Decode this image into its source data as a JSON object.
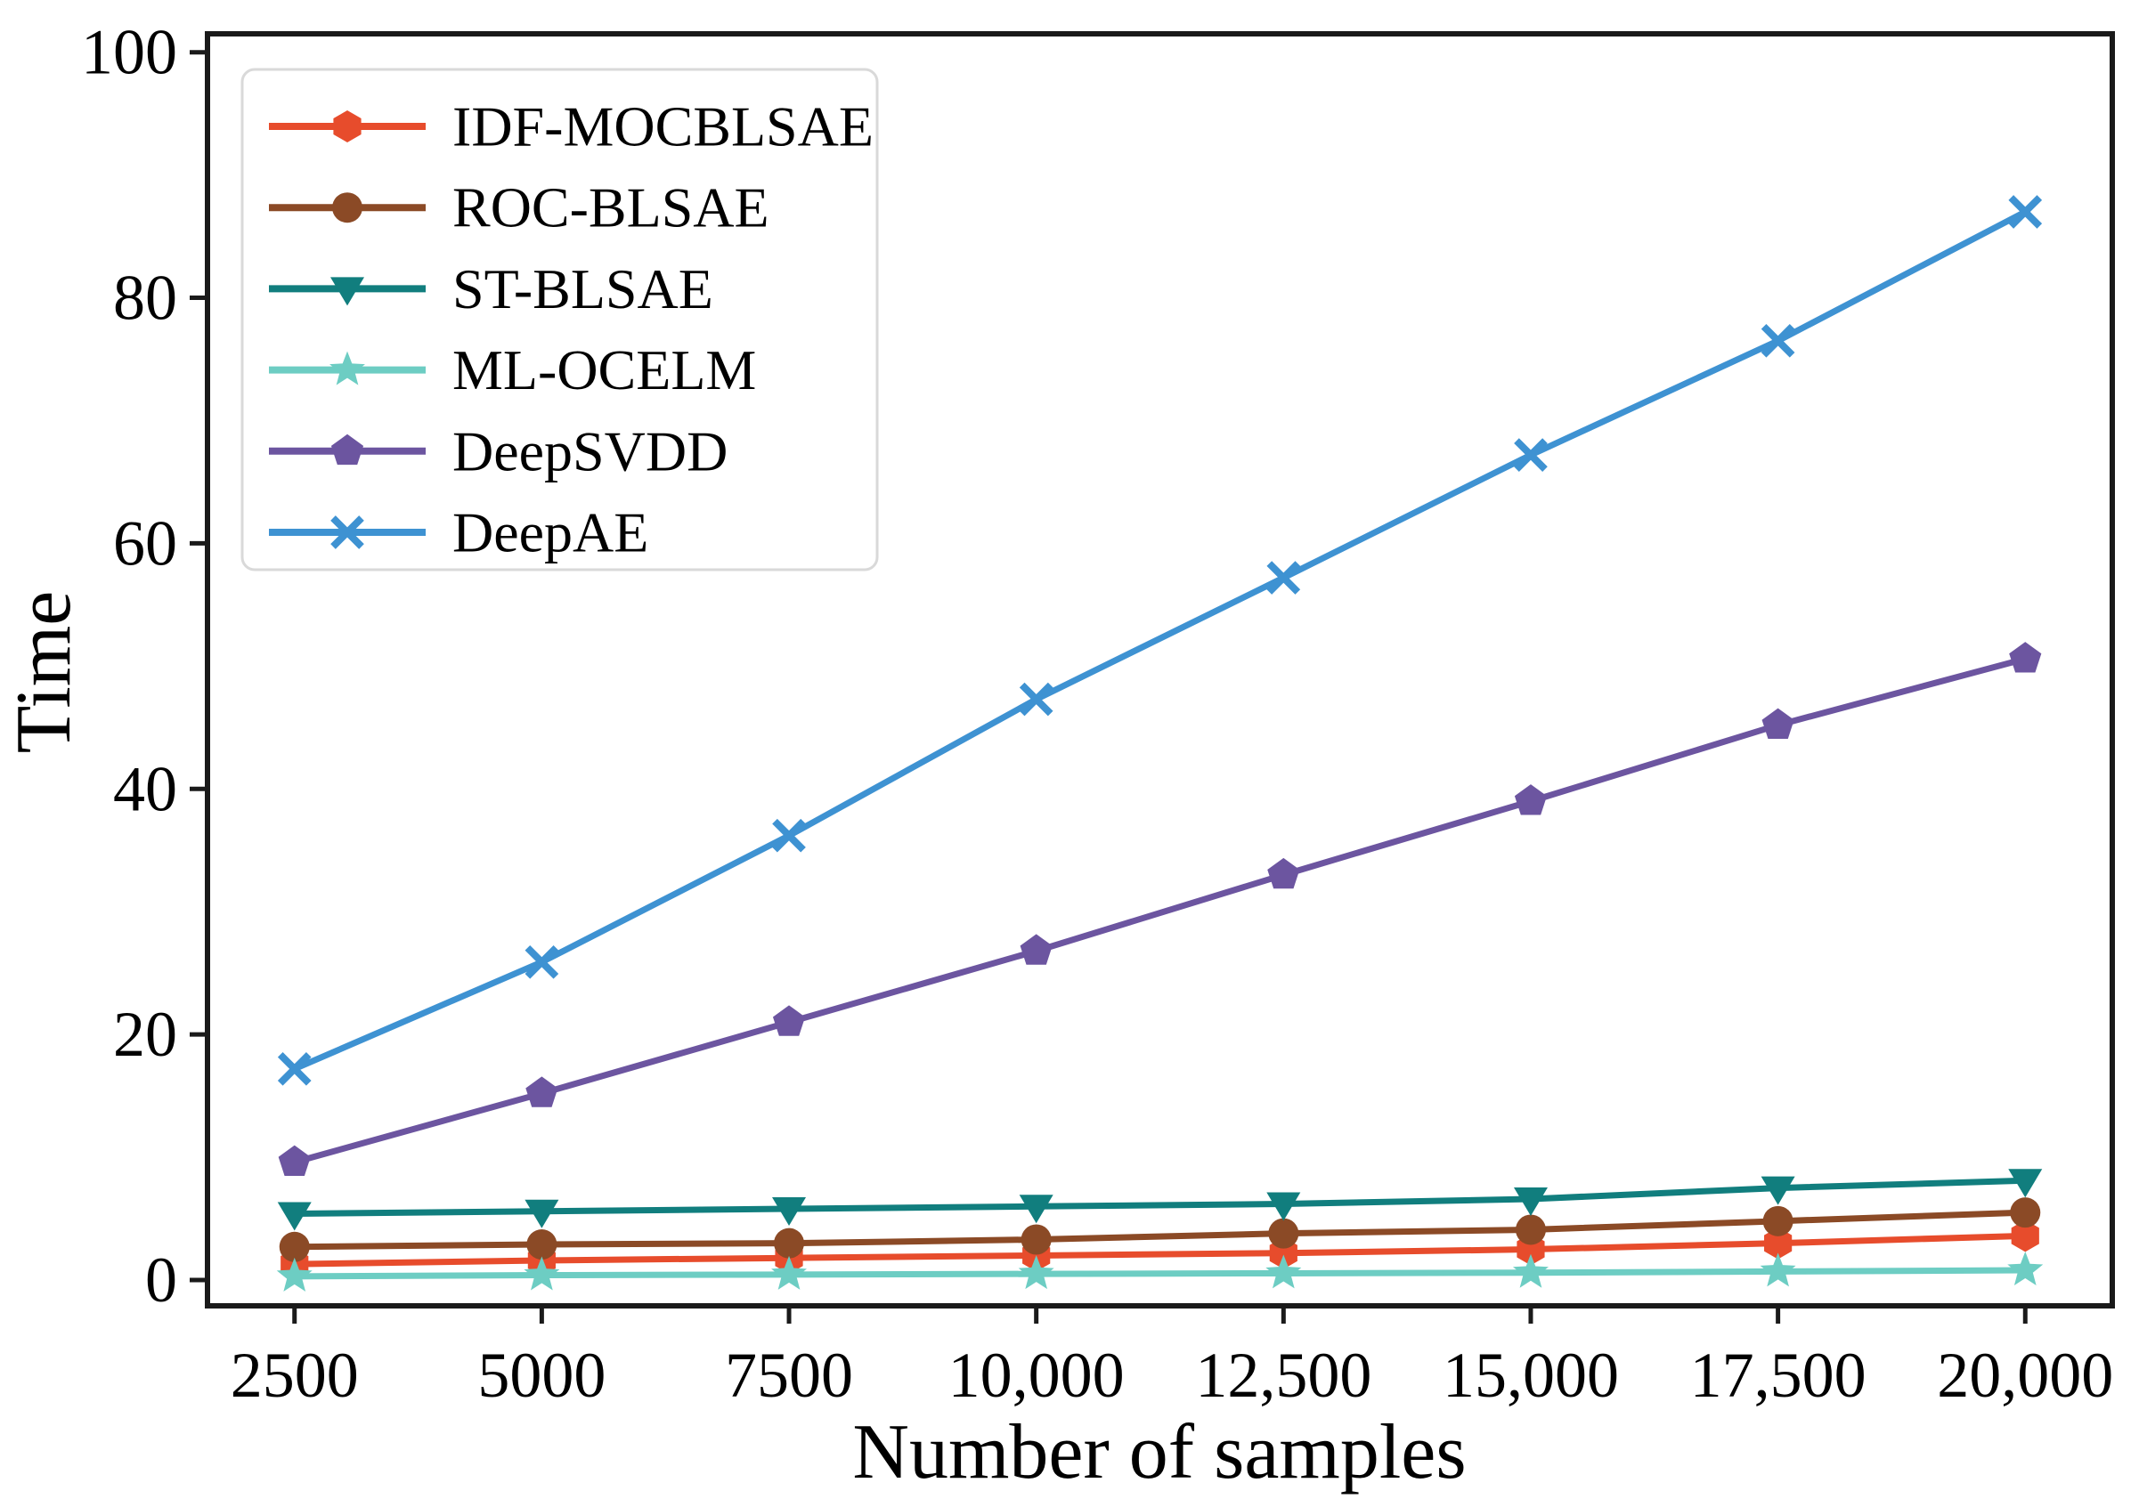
{
  "figure": {
    "background": "#ffffff",
    "text_color": "#000000",
    "spine_color": "#1a1a1a",
    "legend_border_color": "#d9d9d9",
    "legend_background": "#ffffff"
  },
  "chart_data": {
    "type": "line",
    "title": "",
    "xlabel": "Number of samples",
    "ylabel": "Time",
    "x": [
      2500,
      5000,
      7500,
      10000,
      12500,
      15000,
      17500,
      20000
    ],
    "x_tick_labels": [
      "2500",
      "5000",
      "7500",
      "10,000",
      "12,500",
      "15,000",
      "17,500",
      "20,000"
    ],
    "y_ticks": [
      0,
      20,
      40,
      60,
      80,
      100
    ],
    "y_tick_labels": [
      "0",
      "20",
      "40",
      "60",
      "80",
      "100"
    ],
    "xlim": [
      1620,
      20880
    ],
    "ylim": [
      -2.1,
      101.5
    ],
    "grid": false,
    "legend_position": "upper left",
    "series": [
      {
        "name": "IDF-MOCBLSAE",
        "color": "#E74C2C",
        "marker": "hexagon",
        "values": [
          1.3,
          1.6,
          1.8,
          2.0,
          2.2,
          2.5,
          3.0,
          3.6
        ]
      },
      {
        "name": "ROC-BLSAE",
        "color": "#8B4A26",
        "marker": "circle",
        "values": [
          2.7,
          2.9,
          3.0,
          3.3,
          3.8,
          4.1,
          4.8,
          5.5
        ]
      },
      {
        "name": "ST-BLSAE",
        "color": "#117E7E",
        "marker": "triangle-down",
        "values": [
          5.4,
          5.6,
          5.8,
          6.0,
          6.2,
          6.6,
          7.5,
          8.1
        ]
      },
      {
        "name": "ML-OCELM",
        "color": "#6DCDC3",
        "marker": "star",
        "values": [
          0.3,
          0.4,
          0.45,
          0.5,
          0.55,
          0.6,
          0.7,
          0.8
        ]
      },
      {
        "name": "DeepSVDD",
        "color": "#6C55A0",
        "marker": "pentagon",
        "values": [
          9.6,
          15.2,
          21.0,
          26.8,
          33.0,
          39.0,
          45.2,
          50.6
        ]
      },
      {
        "name": "DeepAE",
        "color": "#3E92D2",
        "marker": "x",
        "values": [
          17.2,
          25.9,
          36.2,
          47.3,
          57.2,
          67.2,
          76.5,
          87.0
        ]
      }
    ]
  }
}
